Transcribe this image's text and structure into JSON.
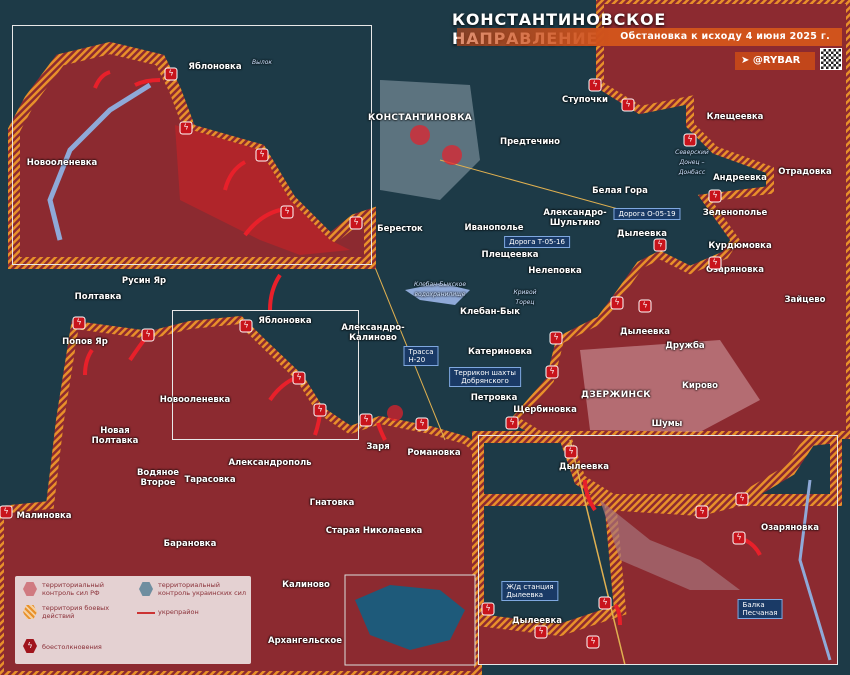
{
  "header": {
    "title": "КОНСТАНТИНОВСКОЕ НАПРАВЛЕНИЕ",
    "subtitle": "Обстановка к исходу 4 июня 2025 г.",
    "brand": "@RYBAR",
    "brand_icon": "telegram-icon"
  },
  "colors": {
    "rf_control": "#8c2a30",
    "ua_control": "#1d3a47",
    "combat_zone": "#e8902a",
    "clash": "#c8141c",
    "accent": "#d0531c"
  },
  "legend": {
    "rf": "территориальный контроль сил РФ",
    "ua": "территориальный контроль украинских сил",
    "combat": "территория боевых действий",
    "fort": "укрепрайон",
    "clash": "боестолкновения"
  },
  "labels": {
    "konst": "КОНСТАНТИНОВКА",
    "stupochki": "Ступочки",
    "predtechino": "Предтечино",
    "kleshcheevka": "Клещеевка",
    "andreevka": "Андреевка",
    "otradovka": "Отрадовка",
    "zelenopole": "Зеленополье",
    "kurdyumovka": "Курдюмовка",
    "ozaryanovka": "Озаряновка",
    "zaitsevo": "Зайцево",
    "belaya_gora": "Белая Гора",
    "al_shultino": "Александро-\nШультино",
    "berestok": "Береcток",
    "ivanopole": "Иванополье",
    "pleshcheevka": "Плещеевка",
    "nelepovka": "Нелеповка",
    "dyleevka1": "Дылеевка",
    "dyleevka2": "Дылеевка",
    "druzhba": "Дружба",
    "kleban_byk": "Клебан-Бык",
    "katerinovka": "Катериновка",
    "kirovo": "Кирово",
    "dzerzhinsk": "ДЗЕРЖИНСК",
    "petrovka": "Петровка",
    "shcherbinovka": "Щербиновка",
    "shumy": "Шумы",
    "rusin_yar": "Русин Яр",
    "poltavka": "Полтавка",
    "popov_yar": "Попов Яр",
    "yablonovka": "Яблоновка",
    "al_kalinovo": "Александро-\nКалиново",
    "novoolenevka": "Новооленевка",
    "novaya_poltavka": "Новая\nПолтавка",
    "zarya": "Заря",
    "romanovka": "Романовка",
    "vodyanoe": "Водяное\nВторое",
    "tarasovka": "Тарасовка",
    "aleksandropol": "Александрополь",
    "malinovka": "Малиновка",
    "gnatovka": "Гнатовка",
    "staraya_nik": "Старая Николаевка",
    "baranovka": "Барановка",
    "kalinovo": "Калиново",
    "arkhangelskoe": "Архангельское",
    "canal": "Северский\nДонец –\nДонбасс",
    "reservoir": "Клебан-Быкское\nводохранилище",
    "kr_torets": "Кривой\nТорец"
  },
  "boxes": {
    "road_o0519": "Дорога О-05-19",
    "road_t0516": "Дорога Т-05-16",
    "trassa": "Трасса\nН-20",
    "terrikon": "Террикон шахты\nДобрянского"
  },
  "inset_top": {
    "yablonovka": "Яблоновка",
    "novoolenevka": "Новооленевка",
    "river": "Вылок"
  },
  "inset_bottom": {
    "dyleevka_n": "Дылеевка",
    "ozaryanovka": "Озаряновка",
    "station": "Ж/д станция\nДылеевка",
    "dyleevka_s": "Дылеевка",
    "balka": "Балка\nПесчаная"
  }
}
